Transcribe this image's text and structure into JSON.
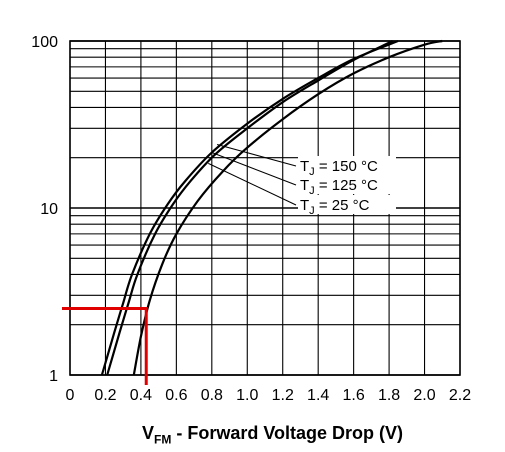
{
  "chart_data": {
    "type": "line",
    "xlabel_symbol": "V",
    "xlabel_subscript": "FM",
    "xlabel_text": " - Forward Voltage Drop (V)",
    "ylabel": "",
    "x_scale": "linear",
    "y_scale": "log",
    "xlim": [
      0,
      2.2
    ],
    "ylim": [
      1,
      100
    ],
    "x_ticks": [
      "0",
      "0.2",
      "0.4",
      "0.6",
      "0.8",
      "1.0",
      "1.2",
      "1.4",
      "1.6",
      "1.8",
      "2.0",
      "2.2"
    ],
    "y_ticks": [
      {
        "value": 1,
        "label": "1"
      },
      {
        "value": 10,
        "label": "10"
      },
      {
        "value": 100,
        "label": "100"
      }
    ],
    "grid": true,
    "legend_placement": "center-right",
    "series": [
      {
        "name": "150 °C",
        "legend_prefix": "T",
        "legend_subscript": "J",
        "legend_suffix": " = 150 °C",
        "x": [
          0.18,
          0.25,
          0.3,
          0.35,
          0.45,
          0.55,
          0.65,
          0.8,
          1.0,
          1.2,
          1.4,
          1.6,
          1.85
        ],
        "y": [
          1,
          1.8,
          2.7,
          4,
          7,
          10.5,
          14.5,
          21.5,
          32,
          45,
          60,
          78,
          100
        ]
      },
      {
        "name": "125 °C",
        "legend_prefix": "T",
        "legend_subscript": "J",
        "legend_suffix": " = 125 °C",
        "x": [
          0.21,
          0.28,
          0.33,
          0.38,
          0.48,
          0.58,
          0.68,
          0.82,
          1.0,
          1.2,
          1.4,
          1.6,
          1.82
        ],
        "y": [
          1,
          1.8,
          2.7,
          4,
          7,
          10.5,
          14.5,
          21,
          30,
          43,
          58,
          77,
          100
        ]
      },
      {
        "name": "25 °C",
        "legend_prefix": "T",
        "legend_subscript": "J",
        "legend_suffix": " = 25 °C",
        "x": [
          0.36,
          0.4,
          0.45,
          0.52,
          0.6,
          0.72,
          0.86,
          1.0,
          1.2,
          1.4,
          1.6,
          1.8,
          2.0,
          2.1
        ],
        "y": [
          1,
          1.7,
          2.8,
          4.6,
          7,
          11,
          16.5,
          23,
          34,
          48,
          64,
          80,
          95,
          100
        ]
      }
    ],
    "annotation_marker": {
      "color": "#e00000",
      "x": 0.43,
      "y": 2.5
    }
  },
  "colors": {
    "curve": "#000000",
    "grid": "#000000",
    "marker": "#e00000"
  }
}
